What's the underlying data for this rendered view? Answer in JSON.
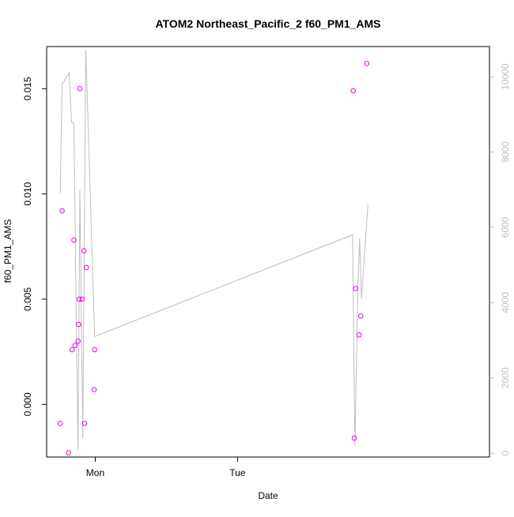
{
  "chart_data": {
    "type": "scatter",
    "title": "ATOM2 Northeast_Pacific_2 f60_PM1_AMS",
    "xlabel": "Date",
    "ylabel": "f60_PM1_AMS",
    "x_ticks": [
      "Mon",
      "Tue"
    ],
    "x_range_hours": [
      -8.2,
      66.5
    ],
    "x_tick_hours": [
      0,
      24
    ],
    "ylim": [
      -0.0025,
      0.017
    ],
    "y_ticks": [
      0.0,
      0.005,
      0.01,
      0.015
    ],
    "y_tick_labels": [
      "0.000",
      "0.005",
      "0.010",
      "0.015"
    ],
    "y2lim": [
      -100,
      10800
    ],
    "y2_ticks": [
      0,
      2000,
      4000,
      6000,
      8000,
      10000
    ],
    "y2_tick_labels": [
      "0",
      "2000",
      "4000",
      "6000",
      "8000",
      "10000"
    ],
    "colors": {
      "points": "#ee00ee",
      "line": "#bebebe",
      "frame": "#000000"
    },
    "series": [
      {
        "kind": "points",
        "axis": "left",
        "points": [
          {
            "x": -5.9,
            "y": -0.0009
          },
          {
            "x": -5.6,
            "y": 0.0092
          },
          {
            "x": -4.5,
            "y": -0.0023
          },
          {
            "x": -3.9,
            "y": 0.0026
          },
          {
            "x": -3.6,
            "y": 0.0078
          },
          {
            "x": -3.4,
            "y": 0.0028
          },
          {
            "x": -2.9,
            "y": 0.003
          },
          {
            "x": -2.8,
            "y": 0.0038
          },
          {
            "x": -2.7,
            "y": 0.005
          },
          {
            "x": -2.6,
            "y": 0.015
          },
          {
            "x": -2.2,
            "y": 0.005
          },
          {
            "x": -1.9,
            "y": 0.0073
          },
          {
            "x": -1.8,
            "y": -0.0009
          },
          {
            "x": -1.5,
            "y": 0.0065
          },
          {
            "x": -0.2,
            "y": 0.0007
          },
          {
            "x": -0.1,
            "y": 0.0026
          },
          {
            "x": 43.5,
            "y": 0.0149
          },
          {
            "x": 43.7,
            "y": -0.0016
          },
          {
            "x": 43.9,
            "y": 0.0055
          },
          {
            "x": 44.5,
            "y": 0.0033
          },
          {
            "x": 44.8,
            "y": 0.0042
          },
          {
            "x": 45.8,
            "y": 0.0162
          }
        ]
      },
      {
        "kind": "line",
        "axis": "right",
        "points": [
          {
            "x": -5.9,
            "y": 6900
          },
          {
            "x": -5.6,
            "y": 9800
          },
          {
            "x": -4.4,
            "y": 10100
          },
          {
            "x": -4.0,
            "y": 8800
          },
          {
            "x": -3.6,
            "y": 8750
          },
          {
            "x": -3.2,
            "y": 3400
          },
          {
            "x": -2.9,
            "y": 100
          },
          {
            "x": -2.6,
            "y": 7000
          },
          {
            "x": -2.1,
            "y": 400
          },
          {
            "x": -1.6,
            "y": 10700
          },
          {
            "x": -0.1,
            "y": 3100
          },
          {
            "x": 43.4,
            "y": 5800
          },
          {
            "x": 43.8,
            "y": 200
          },
          {
            "x": 44.3,
            "y": 4400
          },
          {
            "x": 44.6,
            "y": 5700
          },
          {
            "x": 44.9,
            "y": 4100
          },
          {
            "x": 46.0,
            "y": 6600
          }
        ]
      }
    ]
  }
}
